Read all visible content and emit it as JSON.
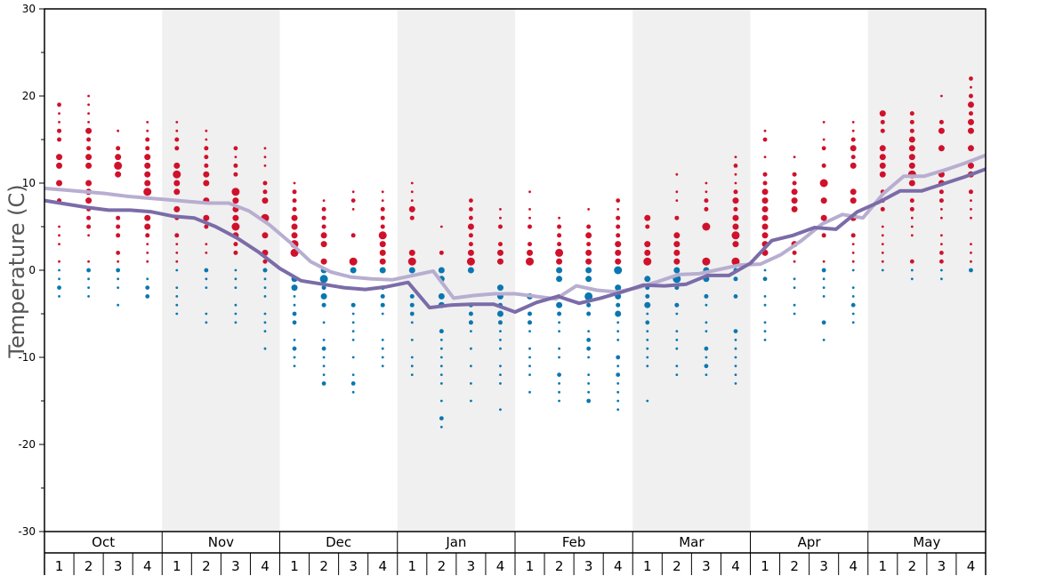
{
  "chart_data": {
    "type": "scatter",
    "ylabel": "Temperature (C)",
    "ylim": [
      -30,
      30
    ],
    "yticks": [
      30,
      20,
      10,
      0,
      -10,
      -20,
      -30
    ],
    "months": [
      "Oct",
      "Nov",
      "Dec",
      "Jan",
      "Feb",
      "Mar",
      "Apr",
      "May"
    ],
    "weeks": [
      "1",
      "2",
      "3",
      "4"
    ],
    "shaded_months": [
      "Nov",
      "Jan",
      "Mar",
      "May"
    ],
    "colors": {
      "warm": "#d0112b",
      "cold": "#0a77b0",
      "line_light": "#b8aed0",
      "line_dark": "#7b6ca8",
      "shade": "#f0f0f0"
    },
    "series": [
      {
        "values": [
          9.4,
          9.2,
          9.0,
          8.8,
          8.5,
          8.3,
          8.1,
          7.9,
          7.7,
          7.7,
          6.8,
          5.2,
          3.2,
          1.0,
          -0.2,
          -0.8,
          -1.0,
          -1.1,
          -0.6,
          -0.1,
          -3.2,
          -2.9,
          -2.7,
          -2.7,
          -3.0,
          -3.3,
          -1.8,
          -2.3,
          -2.5,
          -2.0,
          -1.3,
          -0.5,
          -0.4,
          0.1,
          0.6,
          0.7,
          1.8,
          3.4,
          5.3,
          6.4,
          6.0,
          8.8,
          10.8,
          10.8,
          11.5,
          12.3,
          13.2
        ]
      },
      {
        "values": [
          8.0,
          7.6,
          7.2,
          6.9,
          6.9,
          6.7,
          6.2,
          6.0,
          5.0,
          3.7,
          2.1,
          0.2,
          -1.2,
          -1.6,
          -2.0,
          -2.2,
          -1.9,
          -1.4,
          -4.3,
          -4.0,
          -3.9,
          -3.9,
          -4.8,
          -3.7,
          -3.0,
          -3.8,
          -3.2,
          -2.5,
          -1.7,
          -1.8,
          -1.6,
          -0.6,
          -0.6,
          0.8,
          3.4,
          4.0,
          4.9,
          4.7,
          6.7,
          7.8,
          9.1,
          9.1,
          9.9,
          10.7,
          11.6
        ]
      }
    ]
  }
}
